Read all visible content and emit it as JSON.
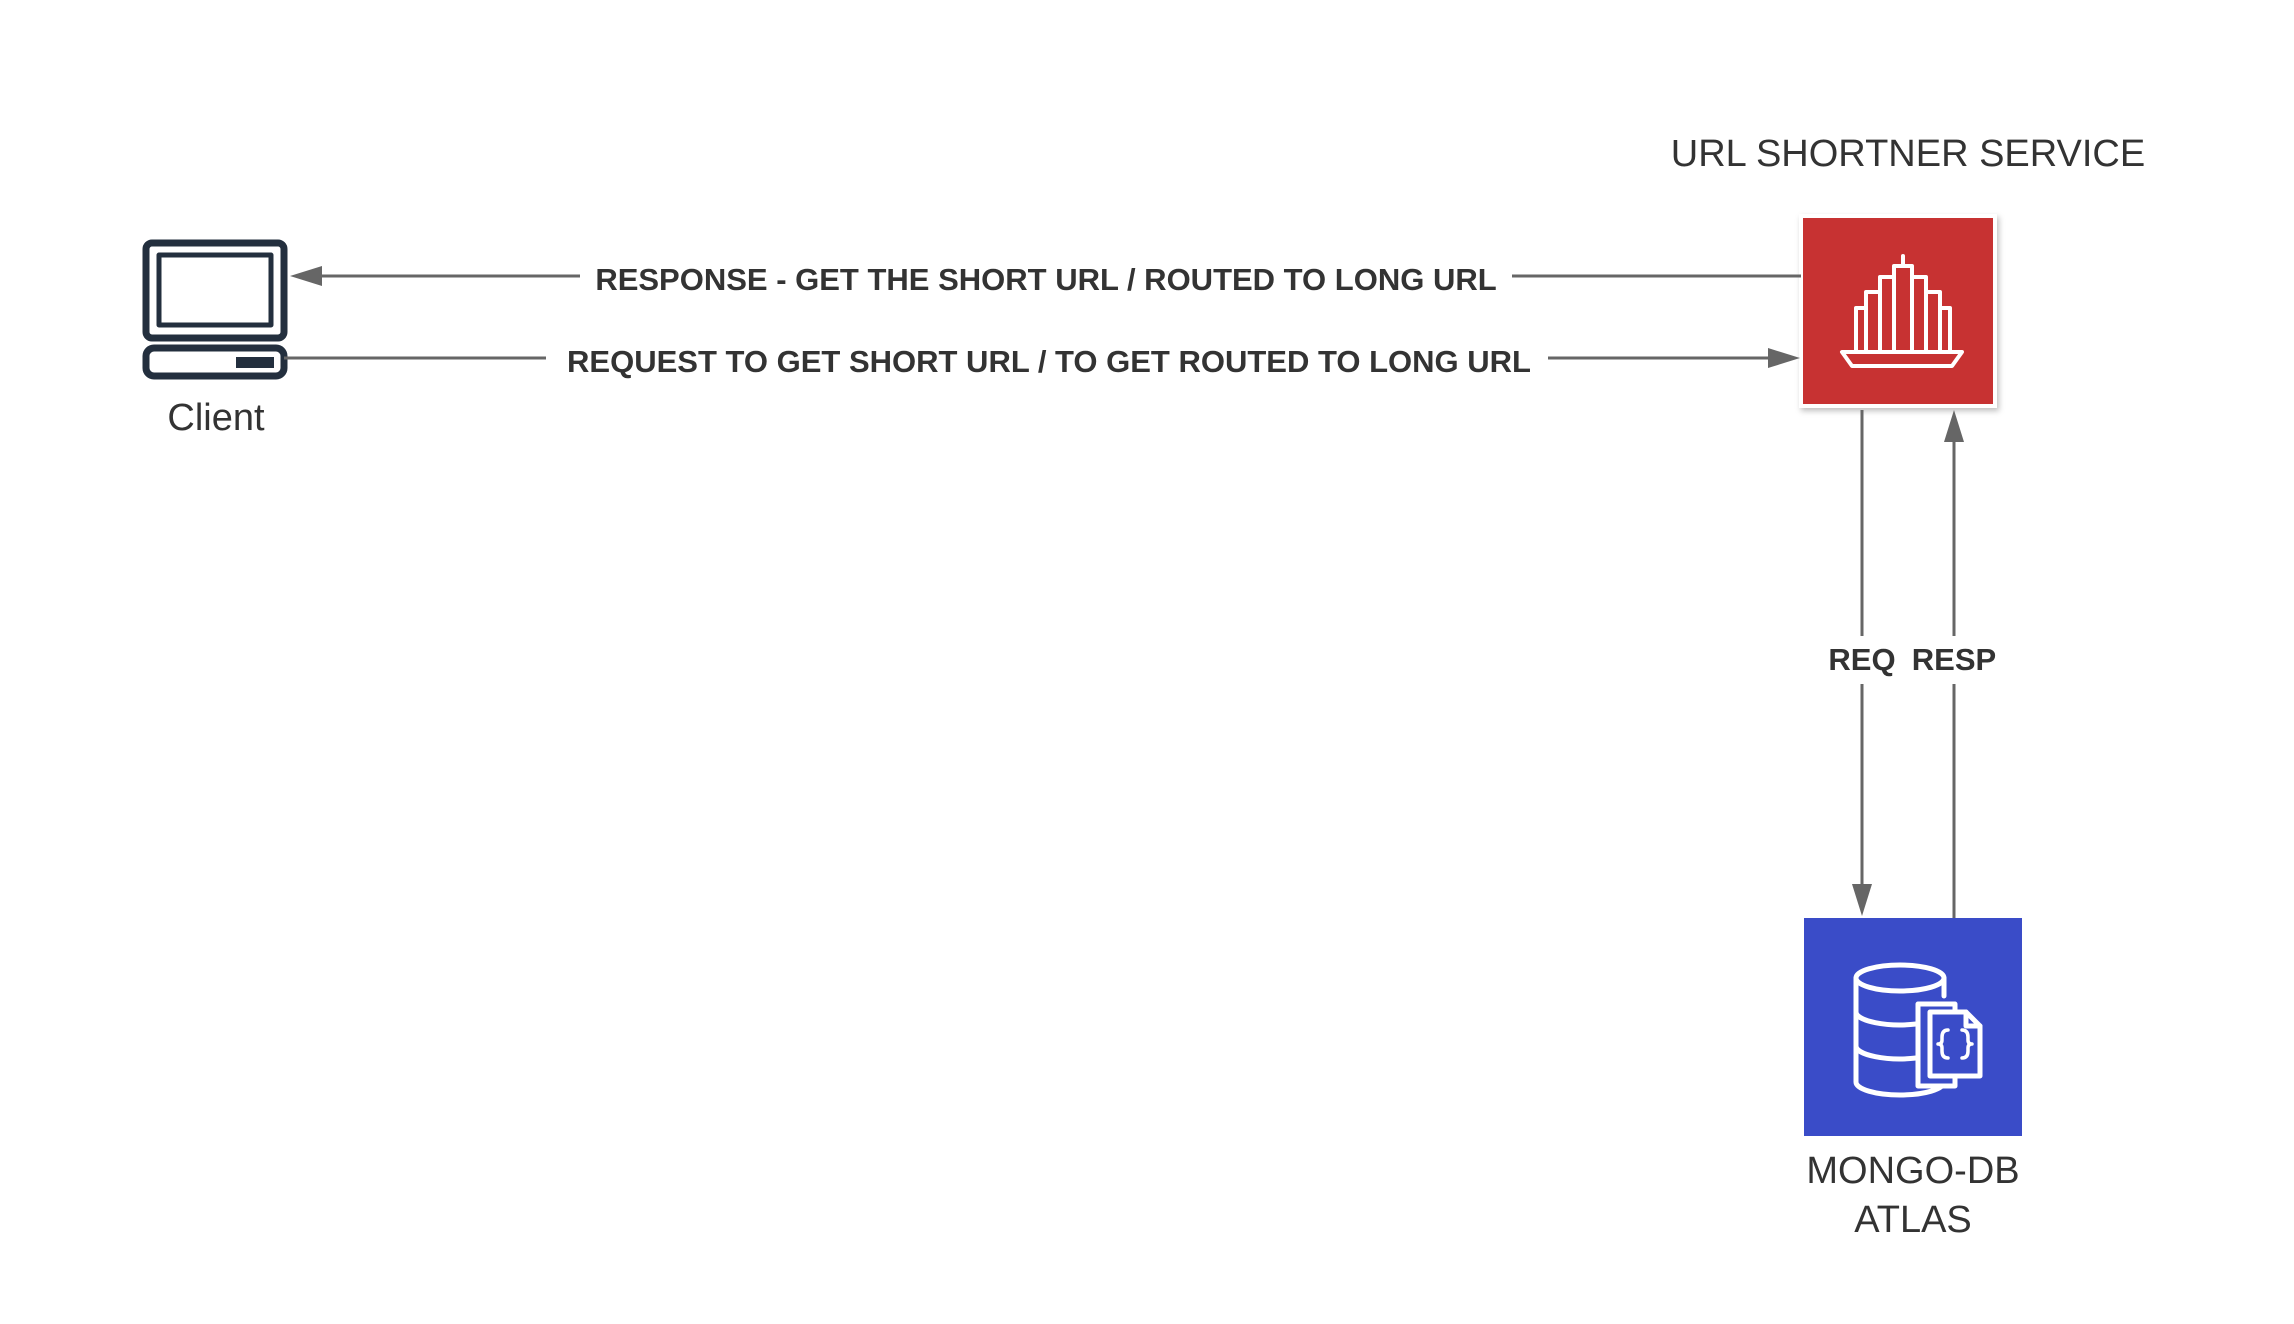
{
  "nodes": {
    "client": {
      "label": "Client"
    },
    "service": {
      "title": "URL SHORTNER SERVICE",
      "color": "#c73333"
    },
    "database": {
      "label_line1": "MONGO-DB",
      "label_line2": "ATLAS",
      "color": "#3a4cc8"
    }
  },
  "edges": {
    "response_to_client": {
      "label": "RESPONSE - GET THE SHORT URL / ROUTED TO LONG URL"
    },
    "request_to_service": {
      "label": "REQUEST TO GET SHORT URL / TO GET ROUTED TO LONG URL"
    },
    "req_to_db": {
      "label": "REQ"
    },
    "resp_from_db": {
      "label": "RESP"
    }
  },
  "colors": {
    "line": "#666666",
    "text": "#333333",
    "client_icon": "#232f3e"
  }
}
